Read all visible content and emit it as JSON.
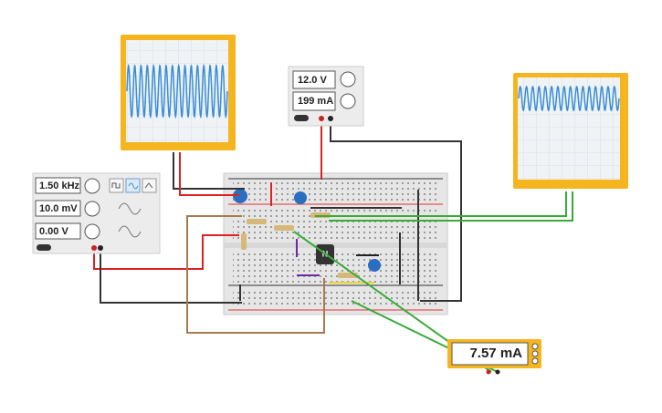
{
  "function_generator": {
    "frequency": "1.50 kHz",
    "amplitude": "10.0 mV",
    "offset": "0.00 V"
  },
  "power_supply": {
    "voltage": "12.0 V",
    "current": "199 mA"
  },
  "multimeter": {
    "reading": "7.57 mA"
  },
  "transistor": {
    "label": "N"
  }
}
